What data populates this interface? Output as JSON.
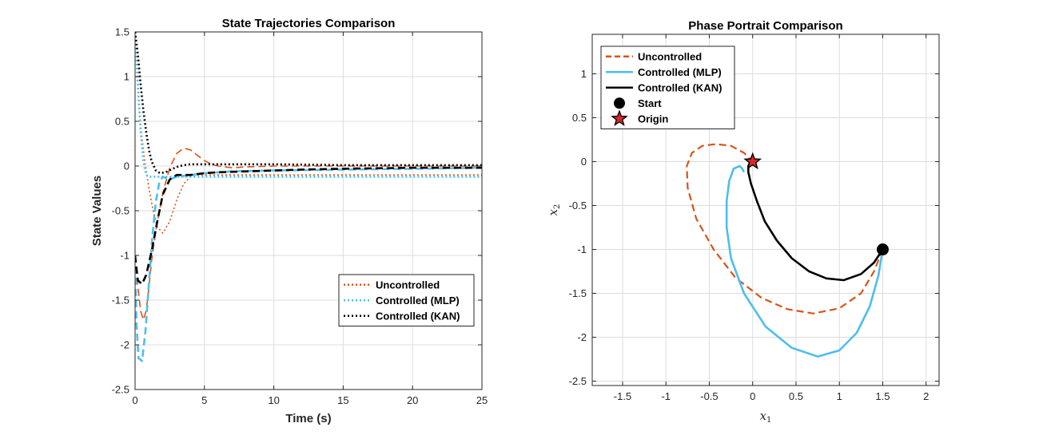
{
  "chart_data": [
    {
      "type": "line",
      "title": "State Trajectories Comparison",
      "xlabel": "Time (s)",
      "ylabel": "State Values",
      "xlim": [
        0,
        25
      ],
      "ylim": [
        -2.5,
        1.5
      ],
      "xticks": [
        0,
        5,
        10,
        15,
        20,
        25
      ],
      "yticks": [
        -2.5,
        -2,
        -1.5,
        -1,
        -0.5,
        0,
        0.5,
        1,
        1.5
      ],
      "xtick_labels": [
        "0",
        "5",
        "10",
        "15",
        "20",
        "25"
      ],
      "ytick_labels": [
        "-2.5",
        "-2",
        "-1.5",
        "-1",
        "-0.5",
        "0",
        "0.5",
        "1",
        "1.5"
      ],
      "grid": true,
      "legend_position": "lower-right",
      "legend": [
        {
          "label": "Uncontrolled",
          "color": "#D95319",
          "style": "dotted"
        },
        {
          "label": "Controlled (MLP)",
          "color": "#4DBEEE",
          "style": "dotted"
        },
        {
          "label": "Controlled (KAN)",
          "color": "#000000",
          "style": "dotted"
        }
      ],
      "series": [
        {
          "name": "Uncontrolled",
          "color": "#D95319",
          "dash": "dot",
          "width": 1.6,
          "x": [
            0,
            0.2,
            0.4,
            0.7,
            1,
            1.3,
            1.6,
            2,
            2.5,
            3,
            3.5,
            4,
            4.5,
            5,
            6,
            8,
            10,
            15,
            20,
            25
          ],
          "y": [
            1.5,
            0.9,
            0.45,
            0.05,
            -0.25,
            -0.5,
            -0.68,
            -0.75,
            -0.62,
            -0.38,
            -0.2,
            -0.12,
            -0.1,
            -0.1,
            -0.1,
            -0.1,
            -0.1,
            -0.1,
            -0.1,
            -0.1
          ]
        },
        {
          "name": "Uncontrolled",
          "color": "#D95319",
          "dash": "dash",
          "width": 1.6,
          "x": [
            0,
            0.2,
            0.4,
            0.6,
            0.8,
            1,
            1.2,
            1.5,
            2,
            2.5,
            3,
            3.5,
            4,
            4.5,
            5,
            5.5,
            6,
            7,
            8,
            10,
            15,
            20,
            25
          ],
          "y": [
            -1,
            -1.35,
            -1.62,
            -1.72,
            -1.62,
            -1.35,
            -1.05,
            -0.72,
            -0.3,
            -0.02,
            0.14,
            0.2,
            0.18,
            0.12,
            0.06,
            0.02,
            0,
            -0.02,
            -0.01,
            0,
            0,
            0,
            0
          ]
        },
        {
          "name": "Controlled (MLP)",
          "color": "#4DBEEE",
          "dash": "dot",
          "width": 2.6,
          "x": [
            0,
            0.2,
            0.4,
            0.6,
            0.8,
            1,
            1.2,
            1.5,
            1.8,
            2.2,
            3,
            4,
            5,
            7,
            10,
            15,
            20,
            25
          ],
          "y": [
            1.5,
            0.9,
            0.4,
            0.05,
            -0.1,
            -0.12,
            -0.12,
            -0.12,
            -0.12,
            -0.12,
            -0.12,
            -0.12,
            -0.12,
            -0.12,
            -0.12,
            -0.12,
            -0.12,
            -0.12
          ]
        },
        {
          "name": "Controlled (MLP)",
          "color": "#4DBEEE",
          "dash": "dash",
          "width": 2.6,
          "x": [
            0,
            0.1,
            0.25,
            0.5,
            0.75,
            1,
            1.25,
            1.5,
            1.75,
            2,
            2.5,
            3,
            4,
            5,
            7,
            10,
            15,
            20,
            25
          ],
          "y": [
            -1,
            -1.75,
            -2.15,
            -2.18,
            -1.85,
            -1.3,
            -0.78,
            -0.4,
            -0.18,
            -0.12,
            -0.15,
            -0.12,
            -0.1,
            -0.08,
            -0.06,
            -0.05,
            -0.04,
            -0.03,
            -0.02
          ]
        },
        {
          "name": "Controlled (KAN)",
          "color": "#000000",
          "dash": "dot",
          "width": 2.6,
          "x": [
            0,
            0.2,
            0.4,
            0.6,
            0.8,
            1,
            1.2,
            1.5,
            1.8,
            2.2,
            2.6,
            3,
            3.5,
            4,
            5,
            6,
            8,
            10,
            15,
            20,
            25
          ],
          "y": [
            1.5,
            1.25,
            0.92,
            0.62,
            0.38,
            0.18,
            0.05,
            -0.05,
            -0.08,
            -0.07,
            -0.04,
            -0.01,
            0.01,
            0.02,
            0.02,
            0.02,
            0.02,
            0.02,
            0.01,
            0.01,
            0.01
          ]
        },
        {
          "name": "Controlled (KAN)",
          "color": "#000000",
          "dash": "dash",
          "width": 2.6,
          "x": [
            0,
            0.2,
            0.5,
            0.8,
            1.2,
            1.6,
            2,
            2.5,
            3,
            3.5,
            4,
            5,
            6,
            8,
            10,
            12,
            15,
            20,
            25
          ],
          "y": [
            -1,
            -1.28,
            -1.32,
            -1.22,
            -0.95,
            -0.62,
            -0.32,
            -0.15,
            -0.1,
            -0.1,
            -0.1,
            -0.08,
            -0.07,
            -0.06,
            -0.05,
            -0.04,
            -0.03,
            -0.02,
            -0.02
          ]
        }
      ]
    },
    {
      "type": "line",
      "title": "Phase Portrait Comparison",
      "xlabel": "x1",
      "ylabel": "x2",
      "xlim": [
        -1.85,
        2.15
      ],
      "ylim": [
        -2.55,
        1.45
      ],
      "xticks": [
        -1.5,
        -1,
        -0.5,
        0,
        0.5,
        1,
        1.5,
        2
      ],
      "yticks": [
        -2.5,
        -2,
        -1.5,
        -1,
        -0.5,
        0,
        0.5,
        1
      ],
      "xtick_labels": [
        "-1.5",
        "-1",
        "-0.5",
        "0",
        "0.5",
        "1",
        "1.5",
        "2"
      ],
      "ytick_labels": [
        "-2.5",
        "-2",
        "-1.5",
        "-1",
        "-0.5",
        "0",
        "0.5",
        "1"
      ],
      "grid": true,
      "legend_position": "top-left",
      "legend": [
        {
          "label": "Uncontrolled",
          "color": "#D95319",
          "style": "dashed"
        },
        {
          "label": "Controlled (MLP)",
          "color": "#4DBEEE",
          "style": "solid"
        },
        {
          "label": "Controlled (KAN)",
          "color": "#000000",
          "style": "solid"
        },
        {
          "label": "Start",
          "color": "#000000",
          "style": "circle"
        },
        {
          "label": "Origin",
          "color": "#D7262E",
          "style": "star"
        }
      ],
      "series": [
        {
          "name": "Uncontrolled",
          "color": "#D95319",
          "dash": "dash",
          "width": 2.2,
          "x": [
            1.5,
            1.4,
            1.25,
            1.0,
            0.7,
            0.4,
            0.1,
            -0.2,
            -0.45,
            -0.65,
            -0.75,
            -0.76,
            -0.7,
            -0.58,
            -0.42,
            -0.25,
            -0.1,
            0.0
          ],
          "y": [
            -1.0,
            -1.25,
            -1.5,
            -1.67,
            -1.73,
            -1.68,
            -1.55,
            -1.32,
            -1.0,
            -0.65,
            -0.3,
            -0.05,
            0.1,
            0.18,
            0.2,
            0.18,
            0.1,
            0.0
          ]
        },
        {
          "name": "Controlled (MLP)",
          "color": "#4DBEEE",
          "dash": "solid",
          "width": 2.6,
          "x": [
            1.5,
            1.45,
            1.35,
            1.2,
            1.0,
            0.75,
            0.45,
            0.15,
            -0.1,
            -0.25,
            -0.3,
            -0.3,
            -0.27,
            -0.22,
            -0.15,
            -0.12,
            -0.1
          ],
          "y": [
            -1.0,
            -1.3,
            -1.65,
            -1.95,
            -2.15,
            -2.22,
            -2.12,
            -1.88,
            -1.5,
            -1.1,
            -0.75,
            -0.45,
            -0.22,
            -0.08,
            -0.05,
            -0.08,
            -0.12
          ]
        },
        {
          "name": "Controlled (KAN)",
          "color": "#000000",
          "dash": "solid",
          "width": 2.6,
          "x": [
            1.5,
            1.4,
            1.25,
            1.05,
            0.85,
            0.65,
            0.45,
            0.28,
            0.14,
            0.05,
            -0.02,
            -0.05,
            -0.05,
            -0.03,
            0.0
          ],
          "y": [
            -1.0,
            -1.15,
            -1.28,
            -1.35,
            -1.33,
            -1.25,
            -1.1,
            -0.9,
            -0.68,
            -0.45,
            -0.25,
            -0.12,
            -0.05,
            -0.01,
            0.0
          ]
        }
      ],
      "markers": [
        {
          "name": "Start",
          "type": "circle",
          "x": 1.5,
          "y": -1.0,
          "color": "#000000"
        },
        {
          "name": "Origin",
          "type": "star",
          "x": 0.0,
          "y": 0.0,
          "color": "#D7262E"
        }
      ]
    }
  ]
}
